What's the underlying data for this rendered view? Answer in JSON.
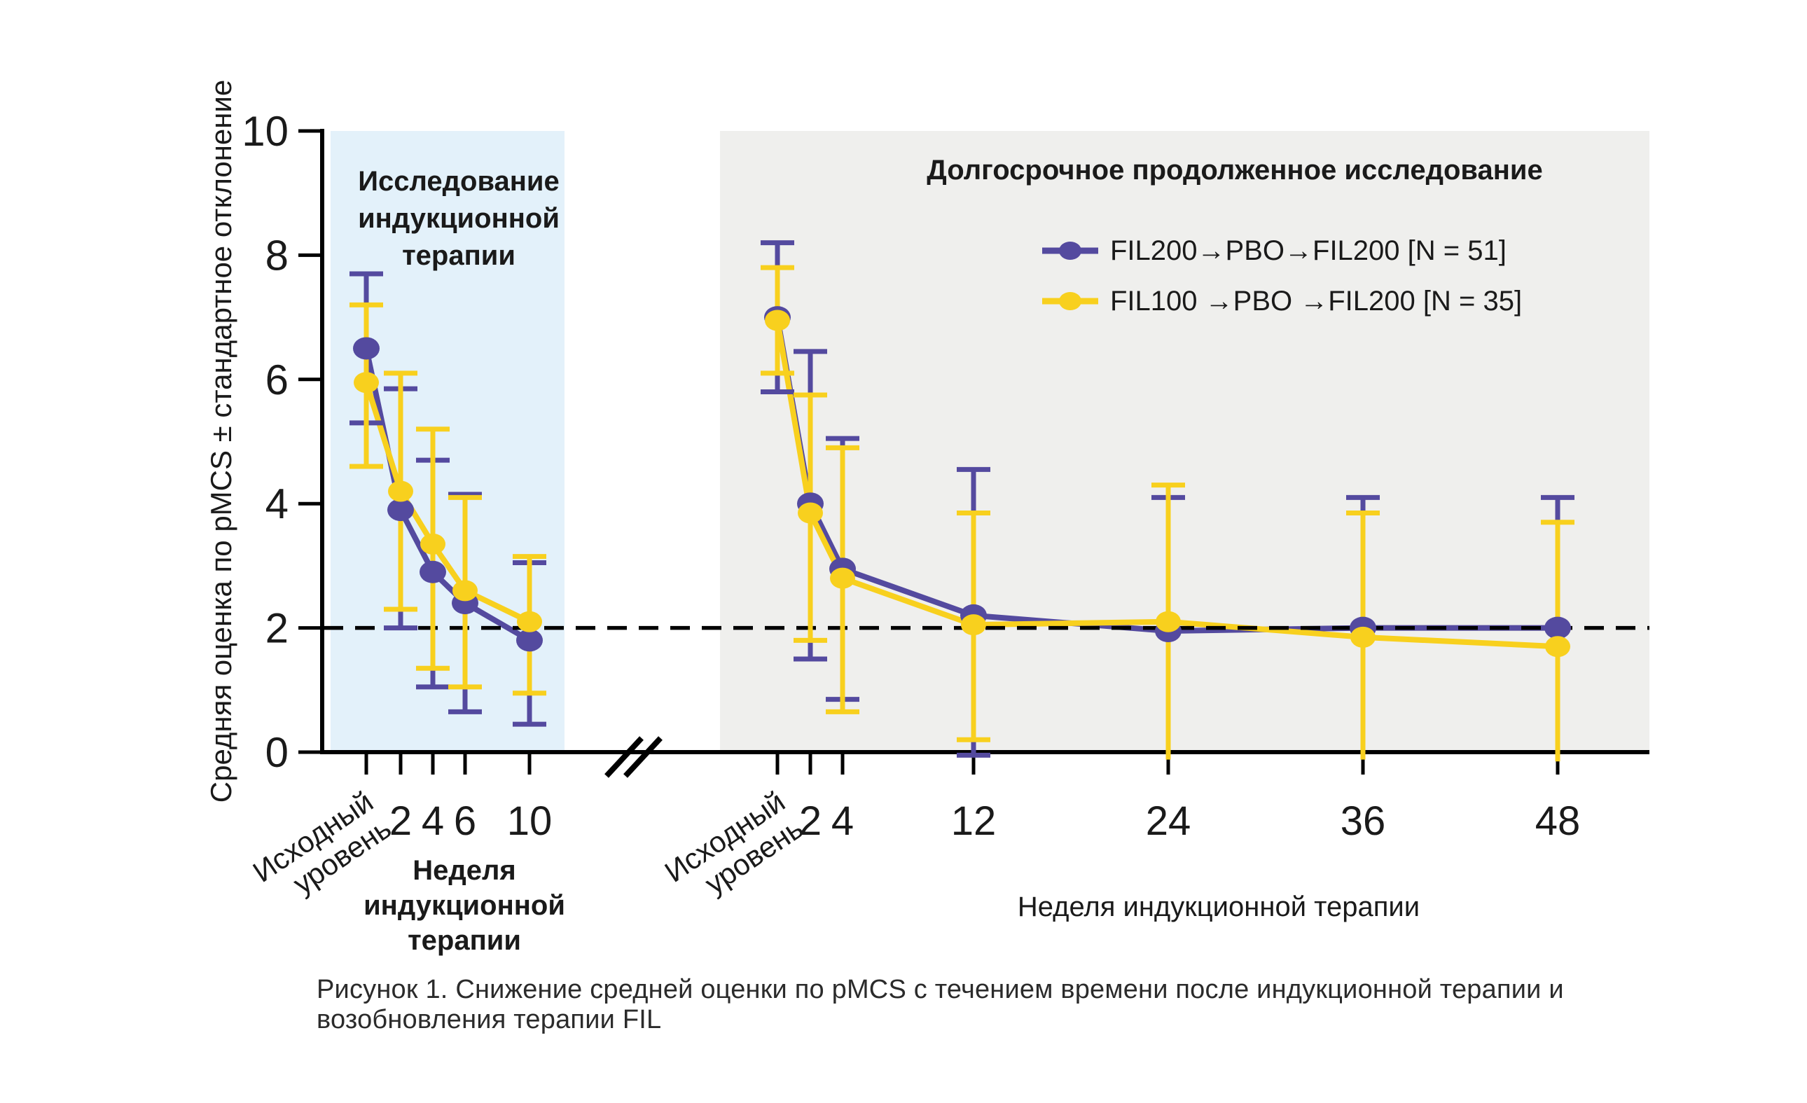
{
  "figure": {
    "caption": "Рисунок 1. Снижение средней оценки по pMCS с течением времени после индукционной терапии и возобновления терапии FIL"
  },
  "colors": {
    "purple": "#544A9F",
    "yellow": "#F8D01E",
    "left_panel_bg": "#E3F1FA",
    "right_panel_bg": "#EFEFED",
    "axis": "#000000",
    "text": "#1a1a1a"
  },
  "y_axis": {
    "label": "Средняя оценка по pMCS ± стандартное отклонение",
    "ticks": [
      0,
      2,
      4,
      6,
      8,
      10
    ],
    "min": 0,
    "max": 10
  },
  "reference_line": {
    "value": 2,
    "style": "dashed",
    "color": "#000000"
  },
  "legend": {
    "items": [
      {
        "label": "FIL200→PBO→FIL200 [N = 51]",
        "color_key": "purple"
      },
      {
        "label": "FIL100 →PBO →FIL200 [N = 35]",
        "color_key": "yellow"
      }
    ],
    "position": "top-right-panel"
  },
  "chart_data": {
    "type": "line",
    "ylim": [
      0,
      10
    ],
    "grid": false,
    "panels": [
      {
        "id": "induction-study",
        "title": "Исследование индукционной терапии",
        "title_lines": [
          "Исследование",
          "индукционной",
          "терапии"
        ],
        "x_axis_title": "Неделя индукционной терапии",
        "x_axis_title_lines": [
          "Неделя",
          "индукционной",
          "терапии"
        ],
        "baseline_label_lines": [
          "Исходный",
          "уровень"
        ],
        "categories": [
          "Исходный уровень",
          "2",
          "4",
          "6",
          "10"
        ],
        "series": [
          {
            "name": "FIL200→PBO→FIL200",
            "color_key": "purple",
            "values": [
              6.5,
              3.9,
              2.9,
              2.4,
              1.8
            ],
            "sd_upper": [
              7.7,
              5.85,
              4.7,
              4.15,
              3.05
            ],
            "sd_lower": [
              5.3,
              2.0,
              1.05,
              0.65,
              0.45
            ],
            "lower_cap": [
              true,
              true,
              true,
              true,
              true
            ]
          },
          {
            "name": "FIL100→PBO→FIL200",
            "color_key": "yellow",
            "values": [
              5.95,
              4.2,
              3.35,
              2.6,
              2.1
            ],
            "sd_upper": [
              7.2,
              6.1,
              5.2,
              4.1,
              3.15
            ],
            "sd_lower": [
              4.6,
              2.3,
              1.35,
              1.05,
              0.95
            ],
            "lower_cap": [
              true,
              true,
              true,
              true,
              true
            ]
          }
        ]
      },
      {
        "id": "long-term-extension-study",
        "title": "Долгосрочное продолженное исследование",
        "title_lines": [
          "Долгосрочное продолженное исследование"
        ],
        "x_axis_title": "Неделя индукционной терапии",
        "x_axis_title_lines": [
          "Неделя индукционной терапии"
        ],
        "baseline_label_lines": [
          "Исходный",
          "уровень"
        ],
        "categories": [
          "Исходный уровень",
          "2",
          "4",
          "12",
          "24",
          "36",
          "48"
        ],
        "series": [
          {
            "name": "FIL200→PBO→FIL200",
            "color_key": "purple",
            "values": [
              7.0,
              4.0,
              2.95,
              2.2,
              1.95,
              2.0,
              2.0
            ],
            "sd_upper": [
              8.2,
              6.45,
              5.05,
              4.55,
              4.1,
              4.1,
              4.1
            ],
            "sd_lower": [
              5.8,
              1.5,
              0.85,
              -0.05,
              -0.1,
              -0.1,
              -0.1
            ],
            "lower_cap": [
              true,
              true,
              true,
              true,
              false,
              false,
              false
            ]
          },
          {
            "name": "FIL100→PBO→FIL200",
            "color_key": "yellow",
            "values": [
              6.95,
              3.85,
              2.8,
              2.05,
              2.1,
              1.85,
              1.7
            ],
            "sd_upper": [
              7.8,
              5.75,
              4.9,
              3.85,
              4.3,
              3.85,
              3.7
            ],
            "sd_lower": [
              6.1,
              1.8,
              0.65,
              0.2,
              -0.12,
              -0.12,
              -0.15
            ],
            "lower_cap": [
              true,
              true,
              true,
              true,
              false,
              false,
              false
            ]
          }
        ]
      }
    ]
  }
}
